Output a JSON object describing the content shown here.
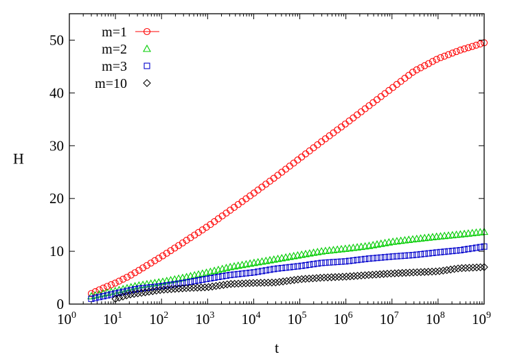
{
  "chart_data": {
    "type": "scatter",
    "title": "",
    "xlabel": "t",
    "ylabel": "H",
    "x_scale": "log",
    "xlim": [
      1,
      1000000000
    ],
    "ylim": [
      0,
      55
    ],
    "x_ticks": [
      {
        "value": 1,
        "base": "10",
        "exp": "0"
      },
      {
        "value": 10,
        "base": "10",
        "exp": "1"
      },
      {
        "value": 100,
        "base": "10",
        "exp": "2"
      },
      {
        "value": 1000,
        "base": "10",
        "exp": "3"
      },
      {
        "value": 10000,
        "base": "10",
        "exp": "4"
      },
      {
        "value": 100000,
        "base": "10",
        "exp": "5"
      },
      {
        "value": 1000000,
        "base": "10",
        "exp": "6"
      },
      {
        "value": 10000000,
        "base": "10",
        "exp": "7"
      },
      {
        "value": 100000000,
        "base": "10",
        "exp": "8"
      },
      {
        "value": 1000000000,
        "base": "10",
        "exp": "9"
      }
    ],
    "y_ticks": [
      0,
      10,
      20,
      30,
      40,
      50
    ],
    "grid": false,
    "legend_position": "top-left",
    "series": [
      {
        "name": "m=1",
        "marker": "circle",
        "color": "#ff0000",
        "legend_line": true,
        "points": [
          [
            3,
            2.0
          ],
          [
            5,
            2.9
          ],
          [
            10,
            4.0
          ],
          [
            20,
            5.3
          ],
          [
            50,
            7.4
          ],
          [
            100,
            9.0
          ],
          [
            300,
            11.7
          ],
          [
            1000,
            14.7
          ],
          [
            3000,
            17.7
          ],
          [
            10000,
            21.0
          ],
          [
            30000,
            24.1
          ],
          [
            100000,
            27.6
          ],
          [
            300000,
            30.8
          ],
          [
            1000000,
            34.2
          ],
          [
            3000000,
            37.4
          ],
          [
            10000000,
            40.9
          ],
          [
            30000000,
            44.1
          ],
          [
            100000000,
            46.5
          ],
          [
            300000000,
            48.1
          ],
          [
            1000000000,
            49.5
          ]
        ]
      },
      {
        "name": "m=2",
        "marker": "triangle",
        "color": "#00cc00",
        "legend_line": false,
        "points": [
          [
            3,
            1.5
          ],
          [
            10,
            2.5
          ],
          [
            30,
            3.5
          ],
          [
            100,
            4.2
          ],
          [
            300,
            5.0
          ],
          [
            1000,
            6.0
          ],
          [
            3000,
            7.0
          ],
          [
            10000,
            7.8
          ],
          [
            30000,
            8.5
          ],
          [
            100000,
            9.3
          ],
          [
            300000,
            10.0
          ],
          [
            1000000,
            10.5
          ],
          [
            3000000,
            11.0
          ],
          [
            10000000,
            11.8
          ],
          [
            30000000,
            12.3
          ],
          [
            100000000,
            12.8
          ],
          [
            300000000,
            13.2
          ],
          [
            1000000000,
            13.7
          ]
        ]
      },
      {
        "name": "m=3",
        "marker": "square",
        "color": "#0000cc",
        "legend_line": false,
        "points": [
          [
            3,
            1.0
          ],
          [
            10,
            2.0
          ],
          [
            30,
            2.9
          ],
          [
            100,
            3.4
          ],
          [
            300,
            4.0
          ],
          [
            1000,
            4.8
          ],
          [
            3000,
            5.5
          ],
          [
            10000,
            6.0
          ],
          [
            30000,
            6.7
          ],
          [
            100000,
            7.2
          ],
          [
            300000,
            7.8
          ],
          [
            1000000,
            8.1
          ],
          [
            3000000,
            8.6
          ],
          [
            10000000,
            9.0
          ],
          [
            30000000,
            9.3
          ],
          [
            100000000,
            9.8
          ],
          [
            300000000,
            10.2
          ],
          [
            1000000000,
            10.9
          ]
        ]
      },
      {
        "name": "m=10",
        "marker": "diamond",
        "color": "#000000",
        "legend_line": false,
        "points": [
          [
            10,
            1.0
          ],
          [
            20,
            1.8
          ],
          [
            50,
            2.3
          ],
          [
            100,
            2.7
          ],
          [
            300,
            3.0
          ],
          [
            1000,
            3.2
          ],
          [
            3000,
            3.8
          ],
          [
            10000,
            4.0
          ],
          [
            30000,
            4.1
          ],
          [
            100000,
            4.7
          ],
          [
            300000,
            5.0
          ],
          [
            1000000,
            5.2
          ],
          [
            3000000,
            5.5
          ],
          [
            10000000,
            5.8
          ],
          [
            30000000,
            6.0
          ],
          [
            100000000,
            6.2
          ],
          [
            300000000,
            6.8
          ],
          [
            1000000000,
            7.0
          ]
        ]
      }
    ]
  }
}
